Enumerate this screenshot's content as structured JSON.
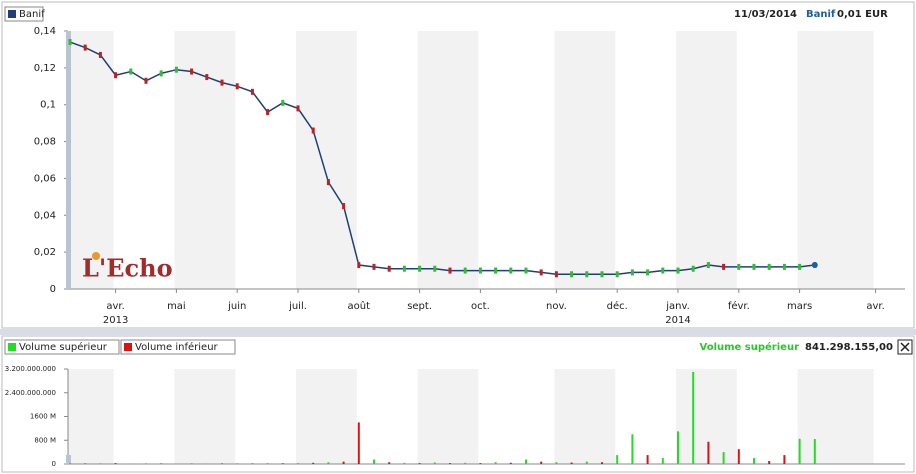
{
  "chart_data": [
    {
      "type": "line",
      "legend": "Banif",
      "date": "11/03/2014",
      "symbol": "Banif",
      "last_price": "0,01 EUR",
      "logo": "L'Echo",
      "categories": [
        null,
        null,
        null,
        "avr.",
        null,
        null,
        null,
        "mai",
        null,
        null,
        null,
        "juin",
        null,
        null,
        null,
        "juil.",
        null,
        null,
        null,
        "août",
        null,
        null,
        null,
        "sept.",
        null,
        null,
        null,
        "oct.",
        null,
        null,
        null,
        null,
        "nov.",
        null,
        null,
        null,
        "déc.",
        null,
        null,
        null,
        "janv.",
        null,
        null,
        null,
        "févr.",
        null,
        null,
        null,
        "mars",
        null,
        null,
        null,
        null,
        "avr.",
        null
      ],
      "years": [
        null,
        null,
        null,
        "2013",
        null,
        null,
        null,
        null,
        null,
        null,
        null,
        null,
        null,
        null,
        null,
        null,
        null,
        null,
        null,
        null,
        null,
        null,
        null,
        null,
        null,
        null,
        null,
        null,
        null,
        null,
        null,
        null,
        null,
        null,
        null,
        null,
        null,
        null,
        null,
        null,
        "2014",
        null,
        null,
        null,
        null,
        null,
        null,
        null,
        null,
        null,
        null,
        null,
        null,
        null,
        null
      ],
      "series": [
        {
          "name": "Banif",
          "color": "#1f3f7a",
          "values": [
            0.134,
            0.131,
            0.127,
            0.116,
            0.118,
            0.113,
            0.117,
            0.119,
            0.118,
            0.115,
            0.112,
            0.11,
            0.107,
            0.096,
            0.101,
            0.098,
            0.086,
            0.058,
            0.045,
            0.013,
            0.012,
            0.011,
            0.011,
            0.011,
            0.011,
            0.01,
            0.01,
            0.01,
            0.01,
            0.01,
            0.01,
            0.009,
            0.008,
            0.008,
            0.008,
            0.008,
            0.008,
            0.009,
            0.009,
            0.01,
            0.01,
            0.011,
            0.013,
            0.012,
            0.012,
            0.012,
            0.012,
            0.012,
            0.012,
            0.013,
            null,
            null,
            null,
            null,
            null
          ]
        }
      ],
      "ylim": [
        0,
        0.14
      ],
      "yticks": [
        {
          "value": 0,
          "label": "0"
        },
        {
          "value": 0.02,
          "label": "0,02"
        },
        {
          "value": 0.04,
          "label": "0,04"
        },
        {
          "value": 0.06,
          "label": "0,06"
        },
        {
          "value": 0.08,
          "label": "0,08"
        },
        {
          "value": 0.1,
          "label": "0,1"
        },
        {
          "value": 0.12,
          "label": "0,12"
        },
        {
          "value": 0.14,
          "label": "0,14"
        }
      ]
    },
    {
      "type": "bar",
      "header_label": "Volume supérieur",
      "header_value": "841.298.155,00",
      "series": [
        {
          "name": "Volume supérieur",
          "color": "#22dd22",
          "values": [
            30000000,
            null,
            25000000,
            null,
            20000000,
            25000000,
            null,
            20000000,
            null,
            20000000,
            null,
            25000000,
            null,
            30000000,
            null,
            30000000,
            null,
            60000000,
            null,
            null,
            150000000,
            null,
            40000000,
            null,
            50000000,
            null,
            40000000,
            null,
            60000000,
            null,
            150000000,
            null,
            60000000,
            null,
            80000000,
            null,
            300000000,
            1000000000,
            null,
            200000000,
            1100000000,
            3100000000,
            null,
            400000000,
            null,
            200000000,
            null,
            null,
            850000000,
            841298155,
            null,
            null,
            null,
            null,
            null
          ]
        },
        {
          "name": "Volume inférieur",
          "color": "#dd1111",
          "values": [
            null,
            20000000,
            null,
            30000000,
            null,
            null,
            20000000,
            null,
            15000000,
            null,
            20000000,
            null,
            20000000,
            null,
            25000000,
            null,
            40000000,
            null,
            80000000,
            1400000000,
            null,
            60000000,
            null,
            30000000,
            null,
            30000000,
            null,
            30000000,
            null,
            40000000,
            null,
            80000000,
            null,
            50000000,
            null,
            60000000,
            null,
            null,
            300000000,
            null,
            null,
            null,
            750000000,
            null,
            500000000,
            null,
            100000000,
            300000000,
            null,
            null,
            null,
            null,
            null,
            null,
            null
          ]
        }
      ],
      "ylim": [
        0,
        3200000000
      ],
      "yticks": [
        {
          "value": 0,
          "label": "0"
        },
        {
          "value": 800000000,
          "label": "800 M"
        },
        {
          "value": 1600000000,
          "label": "1600 M"
        },
        {
          "value": 2400000000,
          "label": "2.400.000.000"
        },
        {
          "value": 3200000000,
          "label": "3.200.000.000"
        }
      ]
    }
  ]
}
